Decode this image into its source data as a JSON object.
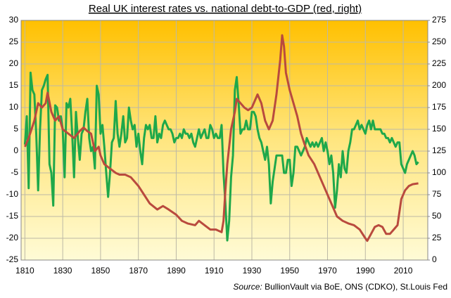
{
  "chart_data": {
    "type": "line",
    "title": "Real UK interest rates vs. national debt-to-GDP (red, right)",
    "source_label": "Source:",
    "source": "BullionVault via BoE, ONS (CDKO), St.Louis Fed",
    "xlim": [
      1808,
      2023
    ],
    "xticks": [
      1810,
      1830,
      1850,
      1870,
      1890,
      1910,
      1930,
      1950,
      1970,
      1990,
      2010
    ],
    "ylim": [
      -25,
      30
    ],
    "yticks": [
      -25,
      -20,
      -15,
      -10,
      -5,
      0,
      5,
      10,
      15,
      20,
      25,
      30
    ],
    "y2lim": [
      0,
      275
    ],
    "y2ticks": [
      0,
      25,
      50,
      75,
      100,
      125,
      150,
      175,
      200,
      225,
      250,
      275
    ],
    "grid": true,
    "series": [
      {
        "color": "#1ea84a",
        "x": [
          1810,
          1811,
          1812,
          1813,
          1814,
          1815,
          1816,
          1817,
          1818,
          1819,
          1820,
          1821,
          1822,
          1823,
          1824,
          1825,
          1826,
          1827,
          1828,
          1829,
          1830,
          1831,
          1832,
          1833,
          1834,
          1835,
          1836,
          1837,
          1838,
          1839,
          1840,
          1841,
          1842,
          1843,
          1844,
          1845,
          1846,
          1847,
          1848,
          1849,
          1850,
          1851,
          1852,
          1853,
          1854,
          1855,
          1856,
          1857,
          1858,
          1859,
          1860,
          1861,
          1862,
          1863,
          1864,
          1865,
          1866,
          1867,
          1868,
          1869,
          1870,
          1871,
          1872,
          1873,
          1874,
          1875,
          1876,
          1877,
          1878,
          1879,
          1880,
          1881,
          1882,
          1883,
          1884,
          1885,
          1886,
          1887,
          1888,
          1889,
          1890,
          1891,
          1892,
          1893,
          1894,
          1895,
          1896,
          1897,
          1898,
          1899,
          1900,
          1901,
          1902,
          1903,
          1904,
          1905,
          1906,
          1907,
          1908,
          1909,
          1910,
          1911,
          1912,
          1913,
          1914,
          1915,
          1916,
          1917,
          1918,
          1919,
          1920,
          1921,
          1922,
          1923,
          1924,
          1925,
          1926,
          1927,
          1928,
          1929,
          1930,
          1931,
          1932,
          1933,
          1934,
          1935,
          1936,
          1937,
          1938,
          1939,
          1940,
          1941,
          1942,
          1943,
          1944,
          1945,
          1946,
          1947,
          1948,
          1949,
          1950,
          1951,
          1952,
          1953,
          1954,
          1955,
          1956,
          1957,
          1958,
          1959,
          1960,
          1961,
          1962,
          1963,
          1964,
          1965,
          1966,
          1967,
          1968,
          1969,
          1970,
          1971,
          1972,
          1973,
          1974,
          1975,
          1976,
          1977,
          1978,
          1979,
          1980,
          1981,
          1982,
          1983,
          1984,
          1985,
          1986,
          1987,
          1988,
          1989,
          1990,
          1991,
          1992,
          1993,
          1994,
          1995,
          1996,
          1997,
          1998,
          1999,
          2000,
          2001,
          2002,
          2003,
          2004,
          2005,
          2006,
          2007,
          2008,
          2009,
          2010,
          2011,
          2012,
          2013,
          2014,
          2015,
          2016,
          2017,
          2018
        ],
        "values": [
          1.5,
          8,
          -8.5,
          18,
          14,
          13,
          4,
          -9,
          5,
          14,
          15,
          16.5,
          17.5,
          -3,
          -5,
          -12.5,
          10.5,
          10,
          7,
          8,
          5,
          -6,
          11,
          10,
          12,
          4,
          -6,
          9,
          3,
          -2,
          4,
          5,
          9,
          12,
          3,
          0,
          1,
          -4,
          15,
          13,
          4,
          6,
          1,
          -5,
          -10.5,
          -5,
          2,
          3,
          11.5,
          4,
          1,
          4,
          8,
          2,
          3,
          10,
          7,
          5,
          6,
          1,
          4,
          0,
          -3,
          3,
          6,
          5,
          6,
          3,
          3,
          8,
          2,
          4,
          3,
          6,
          7,
          6,
          5,
          5,
          4,
          2,
          3,
          3,
          4,
          3,
          5,
          4,
          4,
          3,
          4,
          2,
          1,
          3,
          5,
          3,
          4,
          5,
          3,
          3,
          6,
          5,
          3,
          4,
          3,
          3,
          6,
          -5,
          -12,
          -20.5,
          -16,
          -6,
          -1,
          14,
          17,
          11,
          4,
          5,
          5,
          7,
          5,
          5,
          9,
          9,
          8,
          5,
          3,
          2,
          0,
          -2,
          1,
          -3,
          -12,
          -7,
          -4,
          -1,
          -1,
          -1,
          -1,
          -5,
          -5,
          -2,
          -2,
          -8,
          -5,
          1,
          1,
          0,
          -1,
          0,
          1,
          3,
          2,
          1,
          2,
          1,
          2,
          1,
          2,
          3,
          0,
          2,
          0,
          -3,
          -1,
          -5,
          -13,
          -9,
          -3,
          -6,
          0,
          -4,
          -5,
          0,
          2,
          5,
          5,
          6,
          7,
          5,
          6,
          5,
          4,
          6,
          7,
          5,
          7,
          5,
          5,
          5,
          5,
          4,
          4,
          3,
          3,
          2,
          3,
          2,
          1,
          2,
          2,
          -3,
          -4,
          -5,
          -3,
          -2,
          -1,
          0,
          -1,
          -3,
          -2.5
        ]
      },
      {
        "color": "#b94a3e",
        "axis": "y2",
        "x": [
          1810,
          1812,
          1815,
          1817,
          1819,
          1821,
          1822,
          1824,
          1826,
          1828,
          1830,
          1833,
          1836,
          1839,
          1841,
          1843,
          1845,
          1847,
          1849,
          1850,
          1852,
          1855,
          1858,
          1860,
          1863,
          1866,
          1868,
          1870,
          1873,
          1876,
          1880,
          1883,
          1886,
          1890,
          1893,
          1896,
          1900,
          1902,
          1905,
          1908,
          1911,
          1914,
          1915,
          1916,
          1917,
          1918,
          1919,
          1920,
          1921,
          1922,
          1924,
          1926,
          1928,
          1930,
          1932,
          1933,
          1935,
          1937,
          1939,
          1941,
          1943,
          1945,
          1946,
          1947,
          1948,
          1950,
          1952,
          1954,
          1956,
          1958,
          1960,
          1963,
          1966,
          1969,
          1972,
          1975,
          1978,
          1981,
          1984,
          1987,
          1990,
          1991,
          1993,
          1995,
          1997,
          1999,
          2001,
          2003,
          2005,
          2007,
          2009,
          2011,
          2013,
          2015,
          2018
        ],
        "values": [
          130,
          140,
          160,
          180,
          175,
          180,
          192,
          170,
          160,
          165,
          150,
          145,
          140,
          148,
          152,
          148,
          145,
          125,
          130,
          120,
          110,
          105,
          100,
          98,
          98,
          95,
          90,
          85,
          75,
          65,
          58,
          62,
          58,
          52,
          45,
          42,
          40,
          45,
          40,
          35,
          35,
          32,
          45,
          80,
          110,
          130,
          150,
          160,
          170,
          185,
          180,
          175,
          172,
          175,
          185,
          190,
          180,
          160,
          150,
          160,
          190,
          230,
          258,
          245,
          215,
          195,
          180,
          165,
          145,
          132,
          120,
          110,
          95,
          80,
          65,
          50,
          45,
          42,
          40,
          35,
          25,
          22,
          30,
          38,
          40,
          38,
          30,
          30,
          35,
          40,
          70,
          80,
          85,
          87,
          88
        ]
      }
    ]
  }
}
